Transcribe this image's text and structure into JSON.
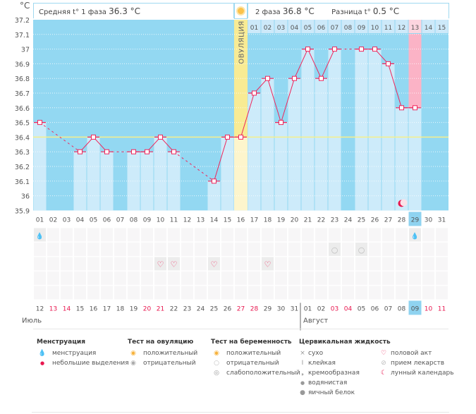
{
  "unit_label": "°C",
  "header": {
    "phase1_label": "Средняя t° 1 фаза",
    "phase1_value": "36.3 °C",
    "phase2_label": "2 фаза",
    "phase2_value": "36.8 °C",
    "diff_label": "Разница t°",
    "diff_value": "0.5 °C",
    "ovulation_label": "ОВУЛЯЦИЯ"
  },
  "chart_data": {
    "type": "line",
    "ylim": [
      35.9,
      37.2
    ],
    "y_ticks": [
      "37.2",
      "37.1",
      "37",
      "36.9",
      "36.8",
      "36.7",
      "36.6",
      "36.5",
      "36.4",
      "36.3",
      "36.2",
      "36.1",
      "36",
      "35.9"
    ],
    "coverline": 36.4,
    "cycle_days": [
      "01",
      "02",
      "03",
      "04",
      "05",
      "06",
      "07",
      "08",
      "09",
      "10",
      "11",
      "12",
      "13",
      "14",
      "15",
      "16",
      "17",
      "18",
      "19",
      "20",
      "21",
      "22",
      "23",
      "24",
      "25",
      "26",
      "27",
      "28",
      "29",
      "30",
      "31"
    ],
    "values": [
      36.5,
      null,
      null,
      36.3,
      36.4,
      36.3,
      null,
      36.3,
      36.3,
      36.4,
      36.3,
      null,
      null,
      36.1,
      36.4,
      36.4,
      36.7,
      36.8,
      36.5,
      36.8,
      37.0,
      36.8,
      37.0,
      null,
      37.0,
      37.0,
      36.9,
      36.6,
      36.6,
      null,
      null
    ],
    "ovulation_day": 16,
    "current_day": 29,
    "luteal_days": [
      "01",
      "02",
      "03",
      "04",
      "05",
      "06",
      "07",
      "08",
      "09",
      "10",
      "11",
      "12",
      "13",
      "14",
      "15"
    ],
    "dates": [
      "12",
      "13",
      "14",
      "15",
      "16",
      "17",
      "18",
      "19",
      "20",
      "21",
      "22",
      "23",
      "24",
      "25",
      "26",
      "27",
      "28",
      "29",
      "30",
      "31",
      "01",
      "02",
      "03",
      "04",
      "05",
      "06",
      "07",
      "08",
      "09",
      "10",
      "11"
    ],
    "weekend": [
      false,
      true,
      true,
      false,
      false,
      false,
      false,
      false,
      true,
      true,
      false,
      false,
      false,
      false,
      false,
      true,
      true,
      false,
      false,
      false,
      false,
      false,
      true,
      true,
      false,
      false,
      false,
      false,
      false,
      true,
      true
    ],
    "months": [
      "Июль",
      "Август"
    ]
  },
  "markers": {
    "menstruation_days": [
      1,
      29
    ],
    "pregnancy_negative_days": [
      23,
      25
    ],
    "intercourse_days": [
      10,
      11,
      14,
      18
    ],
    "moon_days": [
      28
    ]
  },
  "colors": {
    "bg": "#93d8f2",
    "bar": "#cdebfa",
    "line": "#f0245a",
    "ovulation": "#f8eb94",
    "current": "#fbb3c6",
    "weekend": "#e8174f",
    "coverline": "#f6ef8a"
  },
  "legend": {
    "menstruation": {
      "title": "Менструация",
      "items": [
        "менструация",
        "небольшие выделения"
      ]
    },
    "ovulation_test": {
      "title": "Тест на овуляцию",
      "items": [
        "положительный",
        "отрицательный"
      ]
    },
    "pregnancy_test": {
      "title": "Тест на беременность",
      "items": [
        "положительный",
        "отрицательный",
        "слабоположительный"
      ]
    },
    "cervical": {
      "title": "Цервикальная жидкость",
      "items": [
        "сухо",
        "клейкая",
        "кремообразная",
        "водянистая",
        "яичный белок"
      ]
    },
    "other": {
      "items": [
        "половой акт",
        "прием лекарств",
        "лунный календарь"
      ]
    }
  }
}
